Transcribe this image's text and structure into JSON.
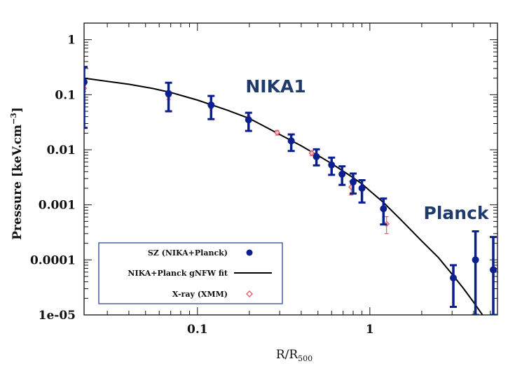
{
  "chart_data": {
    "type": "scatter",
    "xscale": "log",
    "yscale": "log",
    "xlim": [
      0.022,
      5.5
    ],
    "ylim": [
      1e-05,
      2.0
    ],
    "xlabel": "R/R",
    "xlabel_sub": "500",
    "ylabel": "Pressure [keV.cm",
    "ylabel_sup": "−3",
    "ylabel_tail": "]",
    "x_ticks": [
      {
        "value": 0.1,
        "label": "0.1"
      },
      {
        "value": 1,
        "label": "1"
      }
    ],
    "y_ticks": [
      {
        "value": 1,
        "label": "1"
      },
      {
        "value": 0.1,
        "label": "0.1"
      },
      {
        "value": 0.01,
        "label": "0.01"
      },
      {
        "value": 0.001,
        "label": "0.001"
      },
      {
        "value": 0.0001,
        "label": "0.0001"
      },
      {
        "value": 1e-05,
        "label": "1e-05"
      }
    ],
    "annotations": [
      {
        "text": "NIKA1",
        "x": 0.19,
        "y": 0.11
      },
      {
        "text": "Planck",
        "x": 2.05,
        "y": 0.00055
      }
    ],
    "series": [
      {
        "name": "SZ (NIKA+Planck)",
        "kind": "points",
        "color": "#0b1f8f",
        "points": [
          {
            "x": 0.022,
            "y": 0.17,
            "lo": 0.025,
            "hi": 0.32
          },
          {
            "x": 0.068,
            "y": 0.105,
            "lo": 0.05,
            "hi": 0.165
          },
          {
            "x": 0.12,
            "y": 0.065,
            "lo": 0.036,
            "hi": 0.095
          },
          {
            "x": 0.198,
            "y": 0.035,
            "lo": 0.022,
            "hi": 0.047
          },
          {
            "x": 0.35,
            "y": 0.0145,
            "lo": 0.0095,
            "hi": 0.019
          },
          {
            "x": 0.49,
            "y": 0.0075,
            "lo": 0.0052,
            "hi": 0.0102
          },
          {
            "x": 0.6,
            "y": 0.0053,
            "lo": 0.0035,
            "hi": 0.0072
          },
          {
            "x": 0.69,
            "y": 0.0036,
            "lo": 0.0023,
            "hi": 0.005
          },
          {
            "x": 0.8,
            "y": 0.0026,
            "lo": 0.0016,
            "hi": 0.0037
          },
          {
            "x": 0.9,
            "y": 0.002,
            "lo": 0.0011,
            "hi": 0.0028
          },
          {
            "x": 1.2,
            "y": 0.00085,
            "lo": 0.00044,
            "hi": 0.0013
          },
          {
            "x": 3.05,
            "y": 4.7e-05,
            "lo": 1.4e-05,
            "hi": 8e-05
          },
          {
            "x": 4.1,
            "y": 0.0001,
            "lo": 1e-05,
            "hi": 0.00033
          },
          {
            "x": 5.2,
            "y": 6.6e-05,
            "lo": 1e-05,
            "hi": 0.00026
          }
        ]
      },
      {
        "name": "NIKA+Planck gNFW fit",
        "kind": "line",
        "color": "#000000",
        "x": [
          0.022,
          0.03,
          0.04,
          0.055,
          0.07,
          0.1,
          0.15,
          0.2,
          0.3,
          0.4,
          0.5,
          0.6,
          0.7,
          0.8,
          0.9,
          1.0,
          1.2,
          1.5,
          2.0,
          2.5,
          3.0,
          3.5,
          4.0,
          4.5
        ],
        "y": [
          0.2,
          0.175,
          0.155,
          0.13,
          0.11,
          0.08,
          0.052,
          0.037,
          0.019,
          0.0118,
          0.0079,
          0.0056,
          0.0041,
          0.0031,
          0.0024,
          0.0018,
          0.0011,
          0.00055,
          0.00022,
          0.00011,
          5.5e-05,
          3e-05,
          1.7e-05,
          1e-05
        ]
      },
      {
        "name": "X-ray (XMM)",
        "kind": "diamonds",
        "color": "#e0606a",
        "points": [
          {
            "x": 0.022,
            "y": 0.13,
            "lo": 0.115,
            "hi": 0.145
          },
          {
            "x": 0.068,
            "y": 0.095,
            "lo": 0.082,
            "hi": 0.108
          },
          {
            "x": 0.12,
            "y": 0.063,
            "lo": 0.056,
            "hi": 0.07
          },
          {
            "x": 0.198,
            "y": 0.037,
            "lo": 0.033,
            "hi": 0.041
          },
          {
            "x": 0.29,
            "y": 0.0205,
            "lo": 0.0185,
            "hi": 0.0225
          },
          {
            "x": 0.46,
            "y": 0.0087,
            "lo": 0.0078,
            "hi": 0.0096
          },
          {
            "x": 0.78,
            "y": 0.0021,
            "lo": 0.0015,
            "hi": 0.0027
          },
          {
            "x": 1.25,
            "y": 0.00045,
            "lo": 0.0003,
            "hi": 0.00061
          }
        ]
      }
    ]
  }
}
